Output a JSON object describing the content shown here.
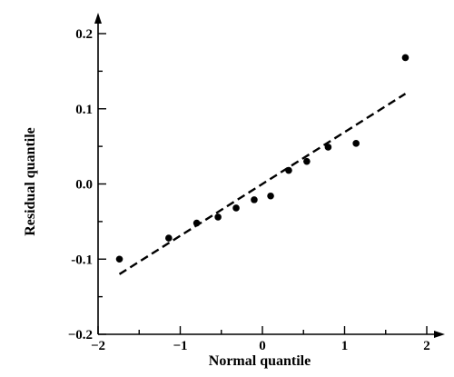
{
  "chart_data": {
    "type": "scatter",
    "xlabel": "Normal quantile",
    "ylabel": "Residual quantile",
    "xlim": [
      -2,
      2
    ],
    "ylim": [
      -0.2,
      0.2
    ],
    "x_ticks": [
      -2,
      -1,
      0,
      1,
      2
    ],
    "x_tick_labels": [
      "−2",
      "−1",
      "0",
      "1",
      "2"
    ],
    "y_ticks": [
      -0.2,
      -0.1,
      0.0,
      0.1,
      0.2
    ],
    "y_tick_labels": [
      "−0.2",
      "-0.1",
      "0.0",
      "0.1",
      "0.2"
    ],
    "x_minor_step": 0.5,
    "y_minor_step": 0.05,
    "grid": false,
    "series": [
      {
        "points": [
          {
            "x": -1.74,
            "y": -0.1
          },
          {
            "x": -1.14,
            "y": -0.072
          },
          {
            "x": -0.8,
            "y": -0.052
          },
          {
            "x": -0.54,
            "y": -0.044
          },
          {
            "x": -0.32,
            "y": -0.032
          },
          {
            "x": -0.1,
            "y": -0.021
          },
          {
            "x": 0.1,
            "y": -0.016
          },
          {
            "x": 0.32,
            "y": 0.018
          },
          {
            "x": 0.54,
            "y": 0.03
          },
          {
            "x": 0.8,
            "y": 0.049
          },
          {
            "x": 1.14,
            "y": 0.054
          },
          {
            "x": 1.74,
            "y": 0.168
          }
        ]
      }
    ],
    "reference_line": {
      "style": "dashed",
      "from": {
        "x": -1.74,
        "y": -0.12
      },
      "to": {
        "x": 1.74,
        "y": 0.12
      }
    }
  }
}
